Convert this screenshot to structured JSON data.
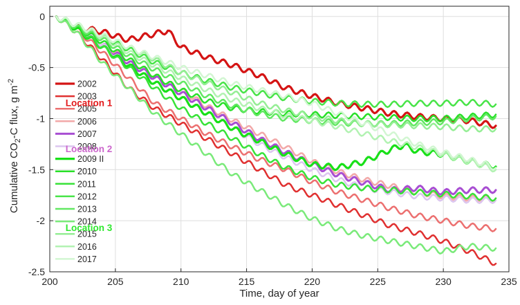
{
  "chart_data": {
    "type": "line",
    "title": "",
    "xlabel": "Time, day of year",
    "ylabel": {
      "parts": [
        "Cumulative CO",
        "2",
        "-C flux, g m",
        "-2"
      ]
    },
    "xlim": [
      200,
      235
    ],
    "ylim": [
      -2.5,
      0.1
    ],
    "xticks": [
      200,
      205,
      210,
      215,
      220,
      225,
      230,
      235
    ],
    "yticks": [
      0,
      -0.5,
      -1,
      -1.5,
      -2,
      -2.5
    ],
    "xtick_labels": [
      "200",
      "205",
      "210",
      "215",
      "220",
      "225",
      "230",
      "235"
    ],
    "ytick_labels": [
      "0",
      "-0.5",
      "-1",
      "-1.5",
      "-2",
      "-2.5"
    ],
    "grid": true,
    "legend_position": "left",
    "annotations": [
      {
        "text": "Location 1",
        "color": "#e31a1c",
        "x": 201.2,
        "y": -0.88
      },
      {
        "text": "Location 2",
        "color": "#cc66cc",
        "x": 201.2,
        "y": -1.33
      },
      {
        "text": "Location 3",
        "color": "#2ee82e",
        "x": 201.2,
        "y": -2.1
      }
    ],
    "series": [
      {
        "name": "2002",
        "color": "#d41414",
        "width": 3.2,
        "points": [
          [
            200.5,
            0
          ],
          [
            202,
            -0.1
          ],
          [
            204,
            -0.15
          ],
          [
            206,
            -0.23
          ],
          [
            208,
            -0.17
          ],
          [
            209,
            -0.14
          ],
          [
            210,
            -0.3
          ],
          [
            212,
            -0.4
          ],
          [
            214,
            -0.48
          ],
          [
            216,
            -0.58
          ],
          [
            218,
            -0.7
          ],
          [
            220,
            -0.78
          ],
          [
            222,
            -0.85
          ],
          [
            224,
            -0.9
          ],
          [
            226,
            -0.95
          ],
          [
            228,
            -0.98
          ],
          [
            230,
            -1.0
          ],
          [
            232,
            -1.02
          ],
          [
            234,
            -1.07
          ]
        ]
      },
      {
        "name": "2003",
        "color": "#e03030",
        "width": 2.5,
        "points": [
          [
            200.5,
            0
          ],
          [
            202,
            -0.15
          ],
          [
            204,
            -0.42
          ],
          [
            206,
            -0.7
          ],
          [
            208,
            -0.9
          ],
          [
            210,
            -1.05
          ],
          [
            212,
            -1.2
          ],
          [
            214,
            -1.35
          ],
          [
            216,
            -1.5
          ],
          [
            218,
            -1.65
          ],
          [
            220,
            -1.75
          ],
          [
            222,
            -1.85
          ],
          [
            224,
            -1.95
          ],
          [
            226,
            -2.05
          ],
          [
            228,
            -2.12
          ],
          [
            230,
            -2.2
          ],
          [
            232,
            -2.3
          ],
          [
            234,
            -2.42
          ]
        ]
      },
      {
        "name": "2005",
        "color": "#ec7070",
        "width": 2.5,
        "points": [
          [
            200.5,
            0
          ],
          [
            202,
            -0.12
          ],
          [
            204,
            -0.35
          ],
          [
            206,
            -0.6
          ],
          [
            208,
            -0.85
          ],
          [
            210,
            -1.0
          ],
          [
            212,
            -1.15
          ],
          [
            214,
            -1.28
          ],
          [
            216,
            -1.4
          ],
          [
            218,
            -1.5
          ],
          [
            220,
            -1.62
          ],
          [
            222,
            -1.72
          ],
          [
            224,
            -1.8
          ],
          [
            226,
            -1.88
          ],
          [
            228,
            -1.95
          ],
          [
            230,
            -2.0
          ],
          [
            232,
            -2.05
          ],
          [
            234,
            -2.08
          ]
        ]
      },
      {
        "name": "2006",
        "color": "#f2a8a8",
        "width": 2.5,
        "points": [
          [
            200.5,
            0
          ],
          [
            202,
            -0.12
          ],
          [
            204,
            -0.28
          ],
          [
            206,
            -0.42
          ],
          [
            208,
            -0.58
          ],
          [
            210,
            -0.72
          ],
          [
            212,
            -0.88
          ],
          [
            214,
            -1.02
          ],
          [
            216,
            -1.15
          ],
          [
            218,
            -1.28
          ],
          [
            220,
            -1.42
          ],
          [
            222,
            -1.52
          ],
          [
            224,
            -1.6
          ],
          [
            226,
            -1.66
          ],
          [
            228,
            -1.72
          ],
          [
            230,
            -1.76
          ],
          [
            232,
            -1.78
          ],
          [
            234,
            -1.78
          ]
        ]
      },
      {
        "name": "2007",
        "color": "#a84ed2",
        "width": 3.0,
        "points": [
          [
            200.5,
            0
          ],
          [
            202,
            -0.1
          ],
          [
            204,
            -0.28
          ],
          [
            206,
            -0.45
          ],
          [
            208,
            -0.6
          ],
          [
            210,
            -0.75
          ],
          [
            212,
            -0.9
          ],
          [
            214,
            -1.05
          ],
          [
            216,
            -1.2
          ],
          [
            218,
            -1.33
          ],
          [
            220,
            -1.45
          ],
          [
            222,
            -1.55
          ],
          [
            224,
            -1.63
          ],
          [
            226,
            -1.7
          ],
          [
            228,
            -1.68
          ],
          [
            230,
            -1.72
          ],
          [
            232,
            -1.7
          ],
          [
            234,
            -1.7
          ]
        ]
      },
      {
        "name": "2008",
        "color": "#dcc6ef",
        "width": 2.5,
        "points": [
          [
            200.5,
            0
          ],
          [
            202,
            -0.1
          ],
          [
            204,
            -0.28
          ],
          [
            206,
            -0.48
          ],
          [
            208,
            -0.65
          ],
          [
            210,
            -0.8
          ],
          [
            212,
            -0.95
          ],
          [
            214,
            -1.1
          ],
          [
            216,
            -1.25
          ],
          [
            218,
            -1.38
          ],
          [
            220,
            -1.5
          ],
          [
            222,
            -1.6
          ],
          [
            224,
            -1.68
          ],
          [
            226,
            -1.72
          ],
          [
            228,
            -1.76
          ],
          [
            230,
            -1.78
          ],
          [
            232,
            -1.8
          ],
          [
            234,
            -1.8
          ]
        ]
      },
      {
        "name": "2009 II",
        "color": "#18e018",
        "width": 3.2,
        "points": [
          [
            200.5,
            0
          ],
          [
            202,
            -0.12
          ],
          [
            204,
            -0.3
          ],
          [
            206,
            -0.48
          ],
          [
            208,
            -0.65
          ],
          [
            210,
            -0.8
          ],
          [
            212,
            -0.95
          ],
          [
            214,
            -1.1
          ],
          [
            216,
            -1.22
          ],
          [
            218,
            -1.35
          ],
          [
            220,
            -1.45
          ],
          [
            222,
            -1.48
          ],
          [
            224,
            -1.42
          ],
          [
            226,
            -1.3
          ],
          [
            227,
            -1.26
          ],
          [
            228,
            -1.32
          ],
          [
            230,
            -1.35
          ],
          [
            232,
            -1.42
          ],
          [
            234,
            -1.47
          ]
        ]
      },
      {
        "name": "2010",
        "color": "#28e028",
        "width": 2.5,
        "points": [
          [
            200.5,
            0
          ],
          [
            202,
            -0.1
          ],
          [
            204,
            -0.25
          ],
          [
            206,
            -0.42
          ],
          [
            208,
            -0.58
          ],
          [
            210,
            -0.72
          ],
          [
            212,
            -0.83
          ],
          [
            214,
            -0.9
          ],
          [
            216,
            -0.93
          ],
          [
            218,
            -0.95
          ],
          [
            220,
            -0.96
          ],
          [
            222,
            -0.97
          ],
          [
            224,
            -0.98
          ],
          [
            226,
            -0.99
          ],
          [
            228,
            -1.0
          ],
          [
            230,
            -1.0
          ],
          [
            232,
            -0.98
          ],
          [
            234,
            -0.96
          ]
        ]
      },
      {
        "name": "2011",
        "color": "#38e238",
        "width": 2.5,
        "points": [
          [
            200.5,
            0
          ],
          [
            202,
            -0.1
          ],
          [
            204,
            -0.3
          ],
          [
            206,
            -0.5
          ],
          [
            208,
            -0.7
          ],
          [
            210,
            -0.9
          ],
          [
            212,
            -1.05
          ],
          [
            214,
            -1.2
          ],
          [
            216,
            -1.35
          ],
          [
            218,
            -1.48
          ],
          [
            220,
            -1.58
          ],
          [
            222,
            -1.65
          ],
          [
            224,
            -1.68
          ],
          [
            226,
            -1.7
          ],
          [
            228,
            -1.72
          ],
          [
            230,
            -1.74
          ],
          [
            232,
            -1.76
          ],
          [
            234,
            -1.78
          ]
        ]
      },
      {
        "name": "2012",
        "color": "#48e448",
        "width": 2.5,
        "points": [
          [
            200.5,
            0
          ],
          [
            202,
            -0.08
          ],
          [
            204,
            -0.2
          ],
          [
            206,
            -0.32
          ],
          [
            208,
            -0.45
          ],
          [
            210,
            -0.55
          ],
          [
            212,
            -0.63
          ],
          [
            214,
            -0.7
          ],
          [
            216,
            -0.75
          ],
          [
            218,
            -0.8
          ],
          [
            220,
            -0.83
          ],
          [
            222,
            -0.85
          ],
          [
            224,
            -0.86
          ],
          [
            226,
            -0.86
          ],
          [
            228,
            -0.85
          ],
          [
            230,
            -0.85
          ],
          [
            232,
            -0.84
          ],
          [
            234,
            -0.86
          ]
        ]
      },
      {
        "name": "2013",
        "color": "#62e862",
        "width": 2.5,
        "points": [
          [
            200.5,
            0
          ],
          [
            202,
            -0.1
          ],
          [
            204,
            -0.22
          ],
          [
            206,
            -0.38
          ],
          [
            208,
            -0.52
          ],
          [
            210,
            -0.65
          ],
          [
            212,
            -0.78
          ],
          [
            214,
            -0.88
          ],
          [
            216,
            -0.95
          ],
          [
            218,
            -1.0
          ],
          [
            220,
            -1.02
          ],
          [
            222,
            -1.04
          ],
          [
            224,
            -1.05
          ],
          [
            226,
            -1.05
          ],
          [
            228,
            -1.04
          ],
          [
            230,
            -1.03
          ],
          [
            232,
            -1.0
          ],
          [
            234,
            -0.98
          ]
        ]
      },
      {
        "name": "2014",
        "color": "#7aea7a",
        "width": 2.5,
        "points": [
          [
            200.5,
            0
          ],
          [
            202,
            -0.15
          ],
          [
            204,
            -0.45
          ],
          [
            206,
            -0.7
          ],
          [
            208,
            -0.95
          ],
          [
            210,
            -1.15
          ],
          [
            212,
            -1.35
          ],
          [
            214,
            -1.55
          ],
          [
            216,
            -1.7
          ],
          [
            218,
            -1.85
          ],
          [
            220,
            -1.98
          ],
          [
            222,
            -2.08
          ],
          [
            224,
            -2.15
          ],
          [
            226,
            -2.2
          ],
          [
            228,
            -2.25
          ],
          [
            230,
            -2.3
          ],
          [
            232,
            -2.25
          ],
          [
            234,
            -2.27
          ]
        ]
      },
      {
        "name": "2015",
        "color": "#95ee95",
        "width": 2.5,
        "points": [
          [
            200.5,
            0
          ],
          [
            202,
            -0.08
          ],
          [
            204,
            -0.18
          ],
          [
            206,
            -0.3
          ],
          [
            208,
            -0.42
          ],
          [
            210,
            -0.55
          ],
          [
            212,
            -0.65
          ],
          [
            214,
            -0.75
          ],
          [
            216,
            -0.85
          ],
          [
            218,
            -0.92
          ],
          [
            220,
            -0.98
          ],
          [
            222,
            -1.02
          ],
          [
            224,
            -1.05
          ],
          [
            226,
            -1.06
          ],
          [
            228,
            -1.07
          ],
          [
            230,
            -1.08
          ],
          [
            232,
            -1.1
          ],
          [
            234,
            -1.1
          ]
        ]
      },
      {
        "name": "2016",
        "color": "#b2f2b2",
        "width": 2.5,
        "points": [
          [
            200.5,
            0
          ],
          [
            202,
            -0.08
          ],
          [
            204,
            -0.2
          ],
          [
            206,
            -0.35
          ],
          [
            208,
            -0.48
          ],
          [
            210,
            -0.6
          ],
          [
            212,
            -0.72
          ],
          [
            214,
            -0.82
          ],
          [
            216,
            -0.9
          ],
          [
            218,
            -0.97
          ],
          [
            220,
            -1.02
          ],
          [
            222,
            -1.08
          ],
          [
            224,
            -1.15
          ],
          [
            226,
            -1.22
          ],
          [
            228,
            -1.28
          ],
          [
            230,
            -1.35
          ],
          [
            232,
            -1.42
          ],
          [
            234,
            -1.5
          ]
        ]
      },
      {
        "name": "2017",
        "color": "#d2f6d2",
        "width": 2.5,
        "points": [
          [
            200.5,
            0
          ],
          [
            202,
            -0.08
          ],
          [
            204,
            -0.18
          ],
          [
            206,
            -0.3
          ],
          [
            208,
            -0.4
          ],
          [
            210,
            -0.5
          ],
          [
            212,
            -0.58
          ],
          [
            214,
            -0.66
          ],
          [
            216,
            -0.72
          ],
          [
            218,
            -0.78
          ],
          [
            220,
            -0.85
          ],
          [
            222,
            -0.95
          ],
          [
            224,
            -1.05
          ],
          [
            226,
            -1.15
          ],
          [
            228,
            -1.25
          ],
          [
            230,
            -1.33
          ],
          [
            232,
            -1.4
          ],
          [
            234,
            -1.48
          ]
        ]
      }
    ]
  }
}
